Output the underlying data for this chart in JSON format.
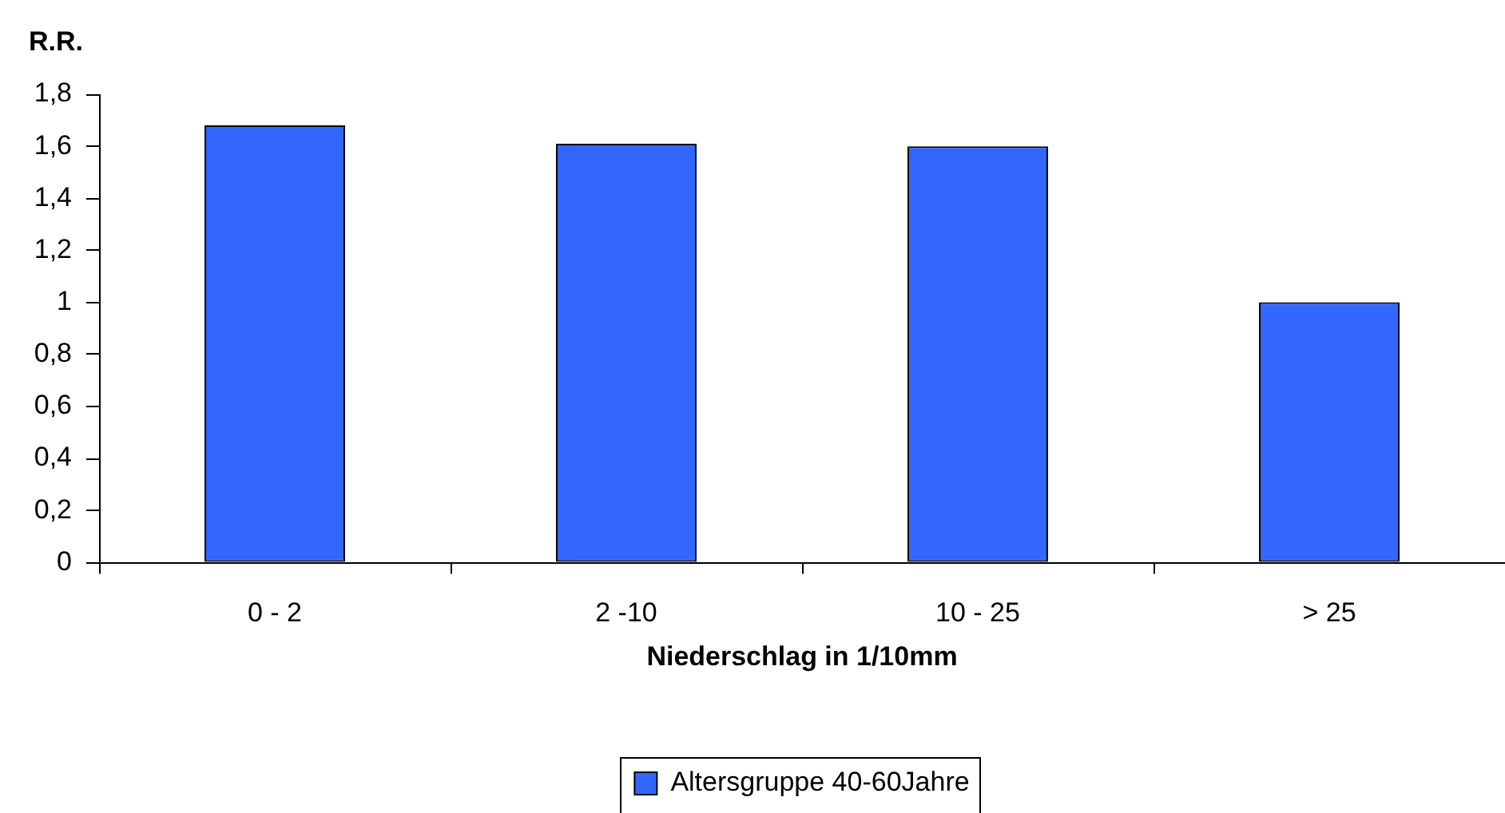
{
  "chart_data": {
    "type": "bar",
    "ylabel": "R.R.",
    "xlabel": "Niederschlag in 1/10mm",
    "categories": [
      "0 - 2",
      "2 -10",
      "10 - 25",
      "> 25"
    ],
    "series": [
      {
        "name": "Altersgruppe 40-60Jahre",
        "color": "#3366ff",
        "values": [
          1.68,
          1.61,
          1.6,
          1.0
        ]
      }
    ],
    "ylim": [
      0,
      1.8
    ],
    "yticks": [
      0,
      {
        "value": 0.2,
        "label": "0,2"
      },
      {
        "value": 0.4,
        "label": "0,4"
      },
      {
        "value": 0.6,
        "label": "0,6"
      },
      {
        "value": 0.8,
        "label": "0,8"
      },
      1,
      {
        "value": 1.2,
        "label": "1,2"
      },
      {
        "value": 1.4,
        "label": "1,4"
      },
      {
        "value": 1.6,
        "label": "1,6"
      },
      {
        "value": 1.8,
        "label": "1,8"
      }
    ],
    "legend": "bottom"
  }
}
